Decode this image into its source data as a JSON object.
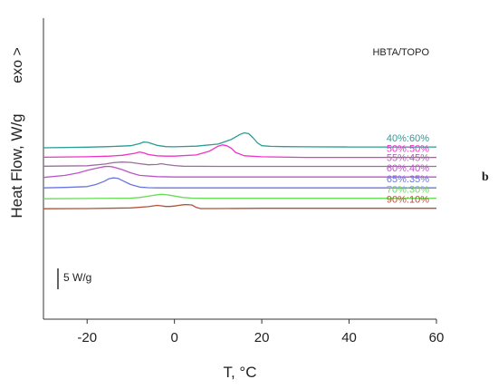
{
  "chart_data": {
    "type": "line",
    "xlabel": "T, °C",
    "ylabel": "Heat Flow, W/g",
    "exo_label": "exo >",
    "legend_title": "HBTA/TOPO",
    "scale_bar_label": "5 W/g",
    "panel_letter": "b",
    "xlim": [
      -30,
      60
    ],
    "xticks": [
      -20,
      0,
      20,
      40,
      60
    ],
    "tick_labels": [
      "-20",
      "0",
      "20",
      "40",
      "60"
    ],
    "grid": false,
    "series": [
      {
        "name": "40%:60%",
        "color": "#2a9d94",
        "x": [
          -30,
          -20,
          -15,
          -10,
          -8,
          -7,
          -6,
          -4,
          -2,
          0,
          5,
          10,
          13,
          15,
          16,
          17,
          18,
          19,
          20,
          22,
          25,
          30,
          40,
          50,
          60
        ],
        "y": [
          2.6,
          2.75,
          2.9,
          3.1,
          3.6,
          4.0,
          3.9,
          3.2,
          2.9,
          2.85,
          3.0,
          3.5,
          4.6,
          5.8,
          6.2,
          6.0,
          5.0,
          3.8,
          3.1,
          2.95,
          2.9,
          2.85,
          2.8,
          2.8,
          2.8
        ]
      },
      {
        "name": "50%:50%",
        "color": "#ee33c8",
        "x": [
          -30,
          -20,
          -15,
          -12,
          -9,
          -8,
          -7,
          -6,
          -4,
          -2,
          0,
          5,
          8,
          10,
          11,
          12,
          13,
          14,
          16,
          20,
          30,
          40,
          50,
          60
        ],
        "y": [
          0.35,
          0.45,
          0.6,
          0.8,
          1.3,
          1.6,
          1.4,
          1.0,
          0.7,
          0.6,
          0.6,
          0.9,
          1.8,
          3.0,
          3.3,
          3.1,
          2.5,
          1.5,
          0.7,
          0.45,
          0.3,
          0.3,
          0.3,
          0.3
        ]
      },
      {
        "name": "55%:45%",
        "color": "#9a6f9e",
        "x": [
          -30,
          -20,
          -16,
          -14,
          -12,
          -10,
          -8,
          -6,
          -4,
          -3,
          -2,
          0,
          2,
          10,
          20,
          30,
          40,
          50,
          60
        ],
        "y": [
          -1.8,
          -1.7,
          -1.3,
          -0.95,
          -0.8,
          -0.9,
          -1.2,
          -1.45,
          -1.4,
          -1.2,
          -1.4,
          -1.65,
          -1.8,
          -1.85,
          -1.85,
          -1.85,
          -1.85,
          -1.85,
          -1.85
        ]
      },
      {
        "name": "60%:40%",
        "color": "#bb55c8",
        "x": [
          -30,
          -25,
          -22,
          -20,
          -18,
          -16,
          -15,
          -14,
          -12,
          -10,
          -8,
          -4,
          0,
          10,
          20,
          30,
          40,
          50,
          60
        ],
        "y": [
          -4.5,
          -4.0,
          -3.4,
          -2.8,
          -2.3,
          -1.9,
          -1.85,
          -2.0,
          -2.6,
          -3.4,
          -4.0,
          -4.3,
          -4.4,
          -4.4,
          -4.4,
          -4.4,
          -4.4,
          -4.4,
          -4.4
        ]
      },
      {
        "name": "65%:35%",
        "color": "#6a75e0",
        "x": [
          -30,
          -25,
          -20,
          -18,
          -16,
          -15,
          -14,
          -13,
          -12,
          -10,
          -8,
          -6,
          -4,
          0,
          10,
          20,
          30,
          40,
          50,
          60
        ],
        "y": [
          -7.0,
          -6.9,
          -6.7,
          -6.2,
          -5.4,
          -4.8,
          -4.6,
          -4.7,
          -5.2,
          -6.2,
          -6.8,
          -6.95,
          -7.0,
          -7.0,
          -7.0,
          -7.0,
          -7.0,
          -7.0,
          -7.0,
          -7.0
        ]
      },
      {
        "name": "70%:30%",
        "color": "#66dd55",
        "x": [
          -30,
          -20,
          -10,
          -8,
          -6,
          -4,
          -3,
          -2,
          -1,
          0,
          2,
          4,
          6,
          10,
          20,
          30,
          40,
          50,
          60
        ],
        "y": [
          -9.6,
          -9.55,
          -9.45,
          -9.3,
          -9.0,
          -8.65,
          -8.55,
          -8.6,
          -8.75,
          -8.95,
          -9.3,
          -9.45,
          -9.5,
          -9.5,
          -9.5,
          -9.5,
          -9.5,
          -9.5,
          -9.5
        ]
      },
      {
        "name": "90%:10%",
        "color": "#b0523a",
        "x": [
          -30,
          -20,
          -10,
          -6,
          -4,
          -3,
          -2,
          -1,
          0,
          1,
          2,
          3,
          4,
          5,
          6,
          10,
          20,
          30,
          40,
          50,
          60
        ],
        "y": [
          -12.0,
          -11.95,
          -11.8,
          -11.5,
          -11.2,
          -11.3,
          -11.45,
          -11.45,
          -11.35,
          -11.2,
          -11.05,
          -11.0,
          -11.1,
          -11.7,
          -11.95,
          -11.95,
          -11.9,
          -11.9,
          -11.9,
          -11.9,
          -11.9
        ]
      }
    ]
  }
}
